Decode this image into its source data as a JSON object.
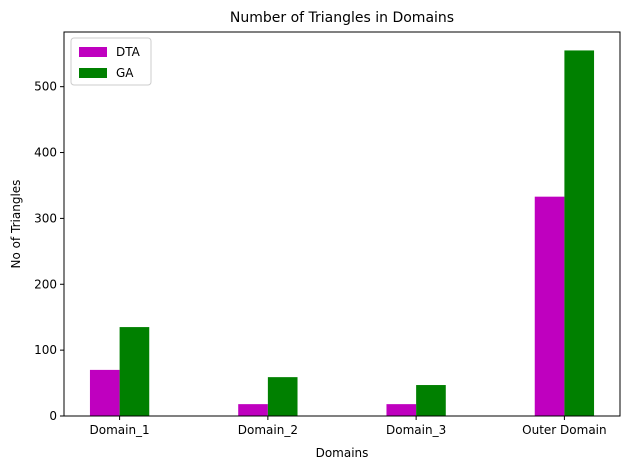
{
  "chart_data": {
    "type": "bar",
    "title": "Number of Triangles in Domains",
    "xlabel": "Domains",
    "ylabel": "No of Triangles",
    "categories": [
      "Domain_1",
      "Domain_2",
      "Domain_3",
      "Outer Domain"
    ],
    "series": [
      {
        "name": "DTA",
        "color": "#bf00bf",
        "values": [
          70,
          18,
          18,
          333
        ]
      },
      {
        "name": "GA",
        "color": "#008000",
        "values": [
          135,
          59,
          47,
          555
        ]
      }
    ],
    "ylim": [
      0,
      583
    ],
    "yticks": [
      0,
      100,
      200,
      300,
      400,
      500
    ],
    "grid": false,
    "legend": "top-left"
  }
}
